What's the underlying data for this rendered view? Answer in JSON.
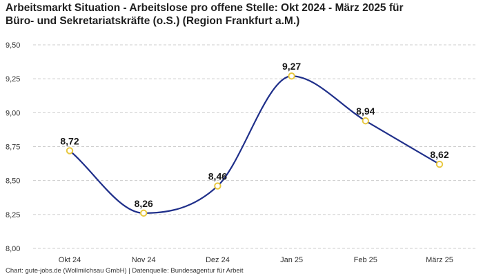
{
  "title_line1": "Arbeitsmarkt Situation - Arbeitslose pro offene Stelle: Okt 2024 - März 2025 für",
  "title_line2": "Büro- und Sekretariatskräfte (o.S.) (Region Frankfurt a.M.)",
  "footer": "Chart: gute-jobs.de (Wollmilchsau GmbH) | Datenquelle: Bundesagentur für Arbeit",
  "colors": {
    "line": "#1f2f8a",
    "marker_stroke": "#e8c840",
    "marker_fill": "#ffffff",
    "grid": "#cccccc"
  },
  "chart_data": {
    "type": "line",
    "title": "Arbeitsmarkt Situation - Arbeitslose pro offene Stelle: Okt 2024 - März 2025 für Büro- und Sekretariatskräfte (o.S.) (Region Frankfurt a.M.)",
    "categories": [
      "Okt 24",
      "Nov 24",
      "Dez 24",
      "Jan 25",
      "Feb 25",
      "März 25"
    ],
    "series": [
      {
        "name": "Arbeitslose pro offene Stelle",
        "values": [
          8.72,
          8.26,
          8.46,
          9.27,
          8.94,
          8.62
        ]
      }
    ],
    "value_labels": [
      "8,72",
      "8,26",
      "8,46",
      "9,27",
      "8,94",
      "8,62"
    ],
    "y_ticks": [
      8.0,
      8.25,
      8.5,
      8.75,
      9.0,
      9.25,
      9.5
    ],
    "y_tick_labels": [
      "8,00",
      "8,25",
      "8,50",
      "8,75",
      "9,00",
      "9,25",
      "9,50"
    ],
    "ylim": [
      8.0,
      9.5
    ],
    "xlabel": "",
    "ylabel": "",
    "grid": true,
    "smooth": true
  }
}
